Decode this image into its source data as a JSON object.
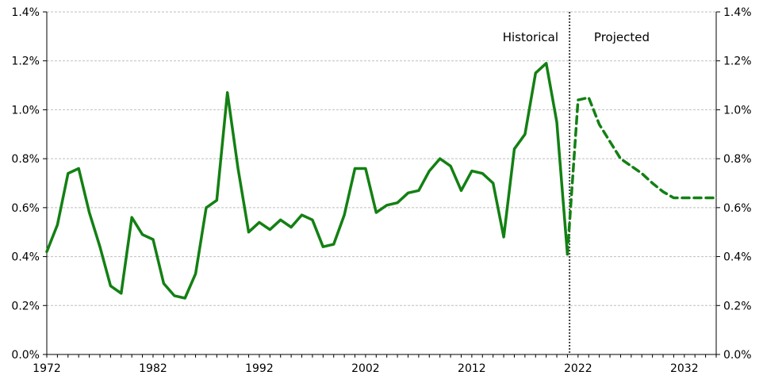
{
  "chart_data": {
    "type": "line",
    "title": "",
    "xlabel": "",
    "ylabel": "",
    "xlim": [
      1972,
      2035
    ],
    "ylim": [
      0.0,
      1.4
    ],
    "x_ticks": [
      1972,
      1982,
      1992,
      2002,
      2012,
      2022,
      2032
    ],
    "y_ticks": [
      "0.0%",
      "0.2%",
      "0.4%",
      "0.6%",
      "0.8%",
      "1.0%",
      "1.2%",
      "1.4%"
    ],
    "y_tick_values": [
      0.0,
      0.2,
      0.4,
      0.6,
      0.8,
      1.0,
      1.2,
      1.4
    ],
    "grid": true,
    "legend": "none",
    "color": "#138013",
    "divider_x": 2021.2,
    "annotations": [
      {
        "text": "Historical",
        "x": 2014.9,
        "y": 1.28
      },
      {
        "text": "Projected",
        "x": 2023.5,
        "y": 1.28
      }
    ],
    "series": [
      {
        "style": "solid",
        "x": [
          1972,
          1973,
          1974,
          1975,
          1976,
          1977,
          1978,
          1979,
          1980,
          1981,
          1982,
          1983,
          1984,
          1985,
          1986,
          1987,
          1988,
          1989,
          1990,
          1991,
          1992,
          1993,
          1994,
          1995,
          1996,
          1997,
          1998,
          1999,
          2000,
          2001,
          2002,
          2003,
          2004,
          2005,
          2006,
          2007,
          2008,
          2009,
          2010,
          2011,
          2012,
          2013,
          2014,
          2015,
          2016,
          2017,
          2018,
          2019,
          2020,
          2021
        ],
        "values": [
          0.42,
          0.53,
          0.74,
          0.76,
          0.58,
          0.44,
          0.28,
          0.25,
          0.56,
          0.49,
          0.47,
          0.29,
          0.24,
          0.23,
          0.33,
          0.6,
          0.63,
          1.07,
          0.76,
          0.5,
          0.54,
          0.51,
          0.55,
          0.52,
          0.57,
          0.55,
          0.44,
          0.45,
          0.57,
          0.76,
          0.76,
          0.58,
          0.61,
          0.62,
          0.66,
          0.67,
          0.75,
          0.8,
          0.77,
          0.67,
          0.75,
          0.74,
          0.7,
          0.48,
          0.84,
          0.9,
          1.15,
          1.19,
          0.95,
          0.41
        ]
      },
      {
        "style": "dashed",
        "x": [
          2021,
          2022,
          2023,
          2024,
          2025,
          2026,
          2027,
          2028,
          2029,
          2030,
          2031,
          2032,
          2033,
          2034,
          2035
        ],
        "values": [
          0.41,
          1.04,
          1.05,
          0.94,
          0.87,
          0.8,
          0.77,
          0.74,
          0.7,
          0.665,
          0.64,
          0.64,
          0.64,
          0.64,
          0.64
        ]
      }
    ]
  }
}
